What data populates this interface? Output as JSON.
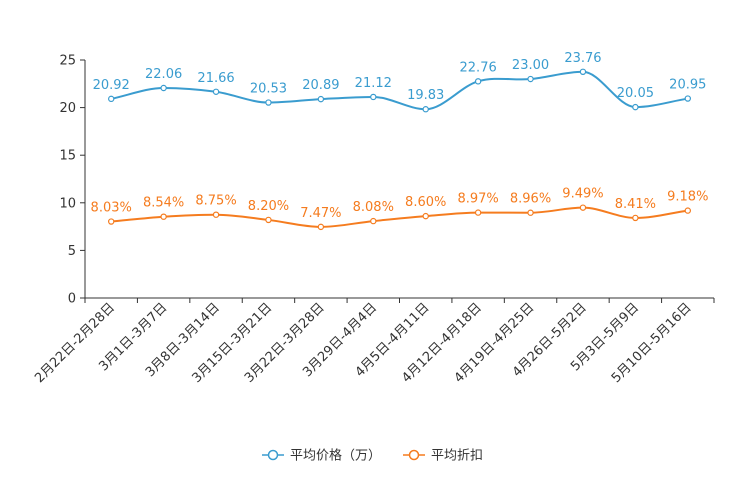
{
  "chart_data": {
    "type": "line",
    "categories": [
      "2月22日-2月28日",
      "3月1日-3月7日",
      "3月8日-3月14日",
      "3月15日-3月21日",
      "3月22日-3月28日",
      "3月29日-4月4日",
      "4月5日-4月11日",
      "4月12日-4月18日",
      "4月19日-4月25日",
      "4月26日-5月2日",
      "5月3日-5月9日",
      "5月10日-5月16日"
    ],
    "series": [
      {
        "name": "平均价格（万）",
        "color": "#3a9ccf",
        "values": [
          20.92,
          22.06,
          21.66,
          20.53,
          20.89,
          21.12,
          19.83,
          22.76,
          23.0,
          23.76,
          20.05,
          20.95
        ],
        "labels": [
          "20.92",
          "22.06",
          "21.66",
          "20.53",
          "20.89",
          "21.12",
          "19.83",
          "22.76",
          "23.00",
          "23.76",
          "20.05",
          "20.95"
        ]
      },
      {
        "name": "平均折扣",
        "color": "#f57c1f",
        "values": [
          8.03,
          8.54,
          8.75,
          8.2,
          7.47,
          8.08,
          8.6,
          8.97,
          8.96,
          9.49,
          8.41,
          9.18
        ],
        "labels": [
          "8.03%",
          "8.54%",
          "8.75%",
          "8.20%",
          "7.47%",
          "8.08%",
          "8.60%",
          "8.97%",
          "8.96%",
          "9.49%",
          "8.41%",
          "9.18%"
        ]
      }
    ],
    "y_ticks": [
      "0",
      "5",
      "10",
      "15",
      "20",
      "25"
    ],
    "ylim": [
      0,
      25
    ],
    "title": "",
    "xlabel": "",
    "ylabel": "",
    "grid": false,
    "legend_position": "bottom-center"
  }
}
